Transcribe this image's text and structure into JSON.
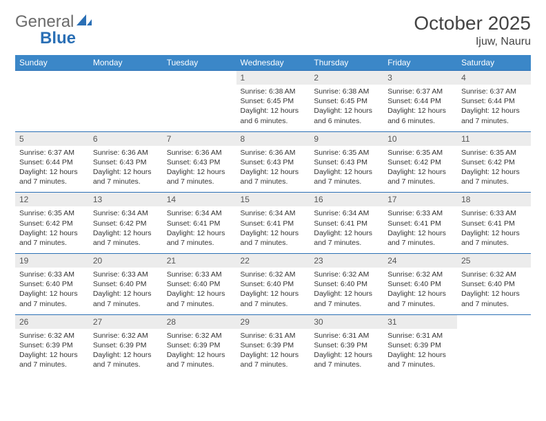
{
  "logo": {
    "text1": "General",
    "text2": "Blue"
  },
  "title": "October 2025",
  "location": "Ijuw, Nauru",
  "colors": {
    "header_bg": "#3b87c8",
    "header_text": "#ffffff",
    "daynum_bg": "#ececec",
    "rule": "#2a6fb5",
    "body_text": "#333333"
  },
  "weekdays": [
    "Sunday",
    "Monday",
    "Tuesday",
    "Wednesday",
    "Thursday",
    "Friday",
    "Saturday"
  ],
  "weeks": [
    {
      "nums": [
        "",
        "",
        "",
        "1",
        "2",
        "3",
        "4"
      ],
      "details": [
        "",
        "",
        "",
        "Sunrise: 6:38 AM\nSunset: 6:45 PM\nDaylight: 12 hours and 6 minutes.",
        "Sunrise: 6:38 AM\nSunset: 6:45 PM\nDaylight: 12 hours and 6 minutes.",
        "Sunrise: 6:37 AM\nSunset: 6:44 PM\nDaylight: 12 hours and 6 minutes.",
        "Sunrise: 6:37 AM\nSunset: 6:44 PM\nDaylight: 12 hours and 7 minutes."
      ]
    },
    {
      "nums": [
        "5",
        "6",
        "7",
        "8",
        "9",
        "10",
        "11"
      ],
      "details": [
        "Sunrise: 6:37 AM\nSunset: 6:44 PM\nDaylight: 12 hours and 7 minutes.",
        "Sunrise: 6:36 AM\nSunset: 6:43 PM\nDaylight: 12 hours and 7 minutes.",
        "Sunrise: 6:36 AM\nSunset: 6:43 PM\nDaylight: 12 hours and 7 minutes.",
        "Sunrise: 6:36 AM\nSunset: 6:43 PM\nDaylight: 12 hours and 7 minutes.",
        "Sunrise: 6:35 AM\nSunset: 6:43 PM\nDaylight: 12 hours and 7 minutes.",
        "Sunrise: 6:35 AM\nSunset: 6:42 PM\nDaylight: 12 hours and 7 minutes.",
        "Sunrise: 6:35 AM\nSunset: 6:42 PM\nDaylight: 12 hours and 7 minutes."
      ]
    },
    {
      "nums": [
        "12",
        "13",
        "14",
        "15",
        "16",
        "17",
        "18"
      ],
      "details": [
        "Sunrise: 6:35 AM\nSunset: 6:42 PM\nDaylight: 12 hours and 7 minutes.",
        "Sunrise: 6:34 AM\nSunset: 6:42 PM\nDaylight: 12 hours and 7 minutes.",
        "Sunrise: 6:34 AM\nSunset: 6:41 PM\nDaylight: 12 hours and 7 minutes.",
        "Sunrise: 6:34 AM\nSunset: 6:41 PM\nDaylight: 12 hours and 7 minutes.",
        "Sunrise: 6:34 AM\nSunset: 6:41 PM\nDaylight: 12 hours and 7 minutes.",
        "Sunrise: 6:33 AM\nSunset: 6:41 PM\nDaylight: 12 hours and 7 minutes.",
        "Sunrise: 6:33 AM\nSunset: 6:41 PM\nDaylight: 12 hours and 7 minutes."
      ]
    },
    {
      "nums": [
        "19",
        "20",
        "21",
        "22",
        "23",
        "24",
        "25"
      ],
      "details": [
        "Sunrise: 6:33 AM\nSunset: 6:40 PM\nDaylight: 12 hours and 7 minutes.",
        "Sunrise: 6:33 AM\nSunset: 6:40 PM\nDaylight: 12 hours and 7 minutes.",
        "Sunrise: 6:33 AM\nSunset: 6:40 PM\nDaylight: 12 hours and 7 minutes.",
        "Sunrise: 6:32 AM\nSunset: 6:40 PM\nDaylight: 12 hours and 7 minutes.",
        "Sunrise: 6:32 AM\nSunset: 6:40 PM\nDaylight: 12 hours and 7 minutes.",
        "Sunrise: 6:32 AM\nSunset: 6:40 PM\nDaylight: 12 hours and 7 minutes.",
        "Sunrise: 6:32 AM\nSunset: 6:40 PM\nDaylight: 12 hours and 7 minutes."
      ]
    },
    {
      "nums": [
        "26",
        "27",
        "28",
        "29",
        "30",
        "31",
        ""
      ],
      "details": [
        "Sunrise: 6:32 AM\nSunset: 6:39 PM\nDaylight: 12 hours and 7 minutes.",
        "Sunrise: 6:32 AM\nSunset: 6:39 PM\nDaylight: 12 hours and 7 minutes.",
        "Sunrise: 6:32 AM\nSunset: 6:39 PM\nDaylight: 12 hours and 7 minutes.",
        "Sunrise: 6:31 AM\nSunset: 6:39 PM\nDaylight: 12 hours and 7 minutes.",
        "Sunrise: 6:31 AM\nSunset: 6:39 PM\nDaylight: 12 hours and 7 minutes.",
        "Sunrise: 6:31 AM\nSunset: 6:39 PM\nDaylight: 12 hours and 7 minutes.",
        ""
      ]
    }
  ]
}
